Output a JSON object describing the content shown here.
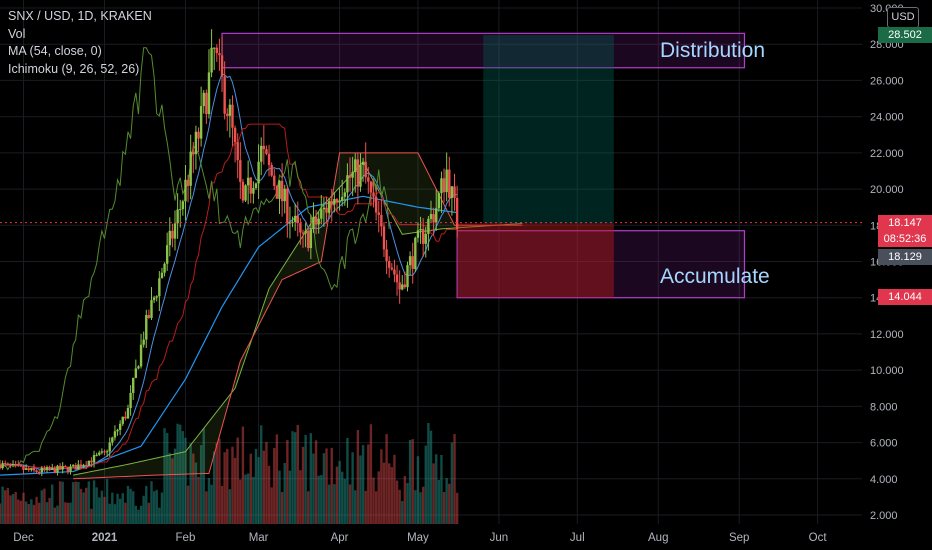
{
  "header": {
    "symbol_line": "SNX / USD, 1D, KRAKEN",
    "vol_label": "Vol",
    "ma_label": "MA (54, close, 0)",
    "ichimoku_label": "Ichimoku (9, 26, 52, 26)"
  },
  "currency": "USD",
  "annotations": {
    "distribution": "Distribution",
    "accumulate": "Accumulate"
  },
  "price_tags": [
    {
      "label": "28.502",
      "price": 28.502,
      "color": "#1b6b46"
    },
    {
      "label": "18.147",
      "price": 18.147,
      "color": "#e0364e"
    },
    {
      "label": "08:52:36",
      "price": 17.25,
      "color": "#e0364e"
    },
    {
      "label": "18.129",
      "price": 16.25,
      "color": "#4a4f5c"
    },
    {
      "label": "14.044",
      "price": 14.044,
      "color": "#e0364e"
    }
  ],
  "colors": {
    "up": "#26a69a",
    "candle_up": "#8bc34a",
    "candle_down": "#ef5350",
    "ma": "#2196f3",
    "tenkan": "#4a90e2",
    "kijun": "#b71c1c",
    "chikou": "#558b2f",
    "span_a": "#7cb342",
    "span_b": "#ef5350",
    "distribution_box": "#9c27b0",
    "target_zone": "#00695c",
    "stop_zone": "#b71c1c"
  },
  "chart_data": {
    "type": "candlestick",
    "symbol": "SNX / USD",
    "timeframe": "1D",
    "exchange": "KRAKEN",
    "y_axis": {
      "ticks": [
        "2.000",
        "4.000",
        "6.000",
        "8.000",
        "10.000",
        "12.000",
        "14.000",
        "16.000",
        "18.000",
        "20.000",
        "22.000",
        "24.000",
        "26.000",
        "28.000",
        "30.000"
      ],
      "range": [
        2,
        30
      ],
      "currency": "USD"
    },
    "x_axis": {
      "ticks": [
        {
          "label": "Dec",
          "date": "2020-12-01"
        },
        {
          "label": "2021",
          "date": "2021-01-01"
        },
        {
          "label": "Feb",
          "date": "2021-02-01"
        },
        {
          "label": "Mar",
          "date": "2021-03-01"
        },
        {
          "label": "Apr",
          "date": "2021-04-01"
        },
        {
          "label": "May",
          "date": "2021-05-01"
        },
        {
          "label": "Jun",
          "date": "2021-06-01"
        },
        {
          "label": "Jul",
          "date": "2021-07-01"
        },
        {
          "label": "Aug",
          "date": "2021-08-01"
        },
        {
          "label": "Sep",
          "date": "2021-09-01"
        },
        {
          "label": "Oct",
          "date": "2021-10-01"
        }
      ],
      "range": [
        "2020-11-22",
        "2021-10-18"
      ]
    },
    "price_keypoints": [
      [
        "2020-11-22",
        4.8
      ],
      [
        "2020-12-05",
        4.4
      ],
      [
        "2020-12-20",
        4.6
      ],
      [
        "2021-01-01",
        5.4
      ],
      [
        "2021-01-10",
        7.8
      ],
      [
        "2021-01-16",
        12.0
      ],
      [
        "2021-01-22",
        15.0
      ],
      [
        "2021-01-30",
        19.0
      ],
      [
        "2021-02-06",
        23.0
      ],
      [
        "2021-02-12",
        27.5
      ],
      [
        "2021-02-18",
        24.0
      ],
      [
        "2021-02-23",
        19.0
      ],
      [
        "2021-03-02",
        22.0
      ],
      [
        "2021-03-10",
        19.5
      ],
      [
        "2021-03-18",
        17.0
      ],
      [
        "2021-03-27",
        19.0
      ],
      [
        "2021-04-03",
        20.5
      ],
      [
        "2021-04-10",
        21.0
      ],
      [
        "2021-04-16",
        18.0
      ],
      [
        "2021-04-24",
        14.5
      ],
      [
        "2021-05-01",
        17.0
      ],
      [
        "2021-05-08",
        19.0
      ],
      [
        "2021-05-12",
        21.0
      ],
      [
        "2021-05-16",
        18.15
      ]
    ],
    "indicators": {
      "ma_54": [
        [
          "2020-11-22",
          4.2
        ],
        [
          "2020-12-20",
          4.4
        ],
        [
          "2021-01-15",
          5.8
        ],
        [
          "2021-02-01",
          9.5
        ],
        [
          "2021-02-15",
          13.5
        ],
        [
          "2021-03-01",
          16.8
        ],
        [
          "2021-03-20",
          19.0
        ],
        [
          "2021-04-10",
          19.6
        ],
        [
          "2021-05-01",
          19.0
        ],
        [
          "2021-05-16",
          18.7
        ]
      ],
      "ichimoku_span_a": [
        [
          "2020-12-20",
          4.2
        ],
        [
          "2021-01-10",
          4.8
        ],
        [
          "2021-02-01",
          5.5
        ],
        [
          "2021-02-20",
          9.0
        ],
        [
          "2021-03-05",
          14.5
        ],
        [
          "2021-03-25",
          19.0
        ],
        [
          "2021-04-10",
          21.5
        ],
        [
          "2021-04-25",
          17.5
        ],
        [
          "2021-05-10",
          17.8
        ],
        [
          "2021-06-10",
          18.1
        ]
      ],
      "ichimoku_span_b": [
        [
          "2020-12-20",
          4.0
        ],
        [
          "2021-01-20",
          4.2
        ],
        [
          "2021-02-10",
          4.3
        ],
        [
          "2021-02-22",
          10.5
        ],
        [
          "2021-03-10",
          15.0
        ],
        [
          "2021-03-25",
          16.0
        ],
        [
          "2021-04-01",
          22.0
        ],
        [
          "2021-05-01",
          22.0
        ],
        [
          "2021-05-15",
          18.0
        ],
        [
          "2021-06-10",
          18.0
        ]
      ]
    },
    "zones": [
      {
        "label": "Distribution",
        "from": "2021-02-15",
        "to": "2021-09-03",
        "low": 26.7,
        "high": 28.6
      },
      {
        "label": "Accumulate",
        "from": "2021-05-16",
        "to": "2021-09-03",
        "low": 14.0,
        "high": 17.7
      },
      {
        "kind": "target",
        "from": "2021-05-26",
        "to": "2021-07-15",
        "low": 18.1,
        "high": 28.5
      },
      {
        "kind": "stop",
        "from": "2021-05-16",
        "to": "2021-07-15",
        "low": 14.0,
        "high": 18.1
      }
    ],
    "last_price": 18.147,
    "volume_max": 9.0
  }
}
